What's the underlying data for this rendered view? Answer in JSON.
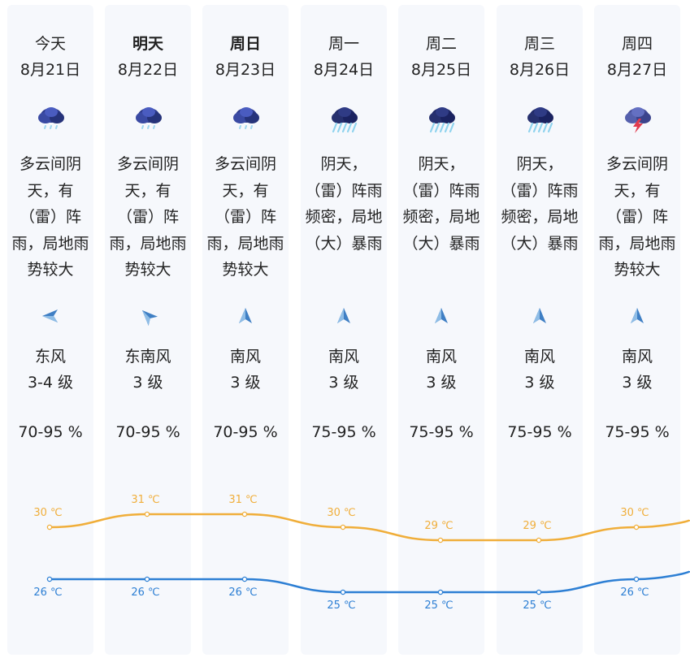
{
  "colors": {
    "high_line": "#f0ae3a",
    "low_line": "#2d7fd4",
    "column_bg": "#f6f8fc"
  },
  "days": [
    {
      "day": "今天",
      "date": "8月21日",
      "icon": "cloud-light-rain-icon",
      "desc": "多云间阴天，有（雷）阵雨，局地雨势较大",
      "wind_dir_icon": "wind-east-arrow-icon",
      "wind": "东风",
      "level": "3-4 级",
      "humidity": "70-95 %",
      "high": "30 ℃",
      "low": "26 ℃"
    },
    {
      "day": "明天",
      "date": "8月22日",
      "icon": "cloud-light-rain-icon",
      "desc": "多云间阴天，有（雷）阵雨，局地雨势较大",
      "wind_dir_icon": "wind-southeast-arrow-icon",
      "wind": "东南风",
      "level": "3 级",
      "humidity": "70-95 %",
      "high": "31 ℃",
      "low": "26 ℃"
    },
    {
      "day": "周日",
      "date": "8月23日",
      "icon": "cloud-light-rain-icon",
      "desc": "多云间阴天，有（雷）阵雨，局地雨势较大",
      "wind_dir_icon": "wind-south-arrow-icon",
      "wind": "南风",
      "level": "3 级",
      "humidity": "70-95 %",
      "high": "31 ℃",
      "low": "26 ℃"
    },
    {
      "day": "周一",
      "date": "8月24日",
      "icon": "cloud-heavy-rain-icon",
      "desc": "阴天，（雷）阵雨频密，局地（大）暴雨",
      "wind_dir_icon": "wind-south-arrow-icon",
      "wind": "南风",
      "level": "3 级",
      "humidity": "75-95 %",
      "high": "30 ℃",
      "low": "25 ℃"
    },
    {
      "day": "周二",
      "date": "8月25日",
      "icon": "cloud-heavy-rain-icon",
      "desc": "阴天，（雷）阵雨频密，局地（大）暴雨",
      "wind_dir_icon": "wind-south-arrow-icon",
      "wind": "南风",
      "level": "3 级",
      "humidity": "75-95 %",
      "high": "29 ℃",
      "low": "25 ℃"
    },
    {
      "day": "周三",
      "date": "8月26日",
      "icon": "cloud-heavy-rain-icon",
      "desc": "阴天，（雷）阵雨频密，局地（大）暴雨",
      "wind_dir_icon": "wind-south-arrow-icon",
      "wind": "南风",
      "level": "3 级",
      "humidity": "75-95 %",
      "high": "29 ℃",
      "low": "25 ℃"
    },
    {
      "day": "周四",
      "date": "8月27日",
      "icon": "cloud-thunder-icon",
      "desc": "多云间阴天，有（雷）阵雨，局地雨势较大",
      "wind_dir_icon": "wind-south-arrow-icon",
      "wind": "南风",
      "level": "3 级",
      "humidity": "75-95 %",
      "high": "30 ℃",
      "low": "26 ℃"
    }
  ],
  "chart_data": {
    "type": "line",
    "categories": [
      "8月21日",
      "8月22日",
      "8月23日",
      "8月24日",
      "8月25日",
      "8月26日",
      "8月27日"
    ],
    "series": [
      {
        "values": [
          30,
          31,
          31,
          30,
          29,
          29,
          30
        ]
      },
      {
        "values": [
          26,
          26,
          26,
          25,
          25,
          25,
          26
        ]
      }
    ],
    "unit": "℃"
  }
}
